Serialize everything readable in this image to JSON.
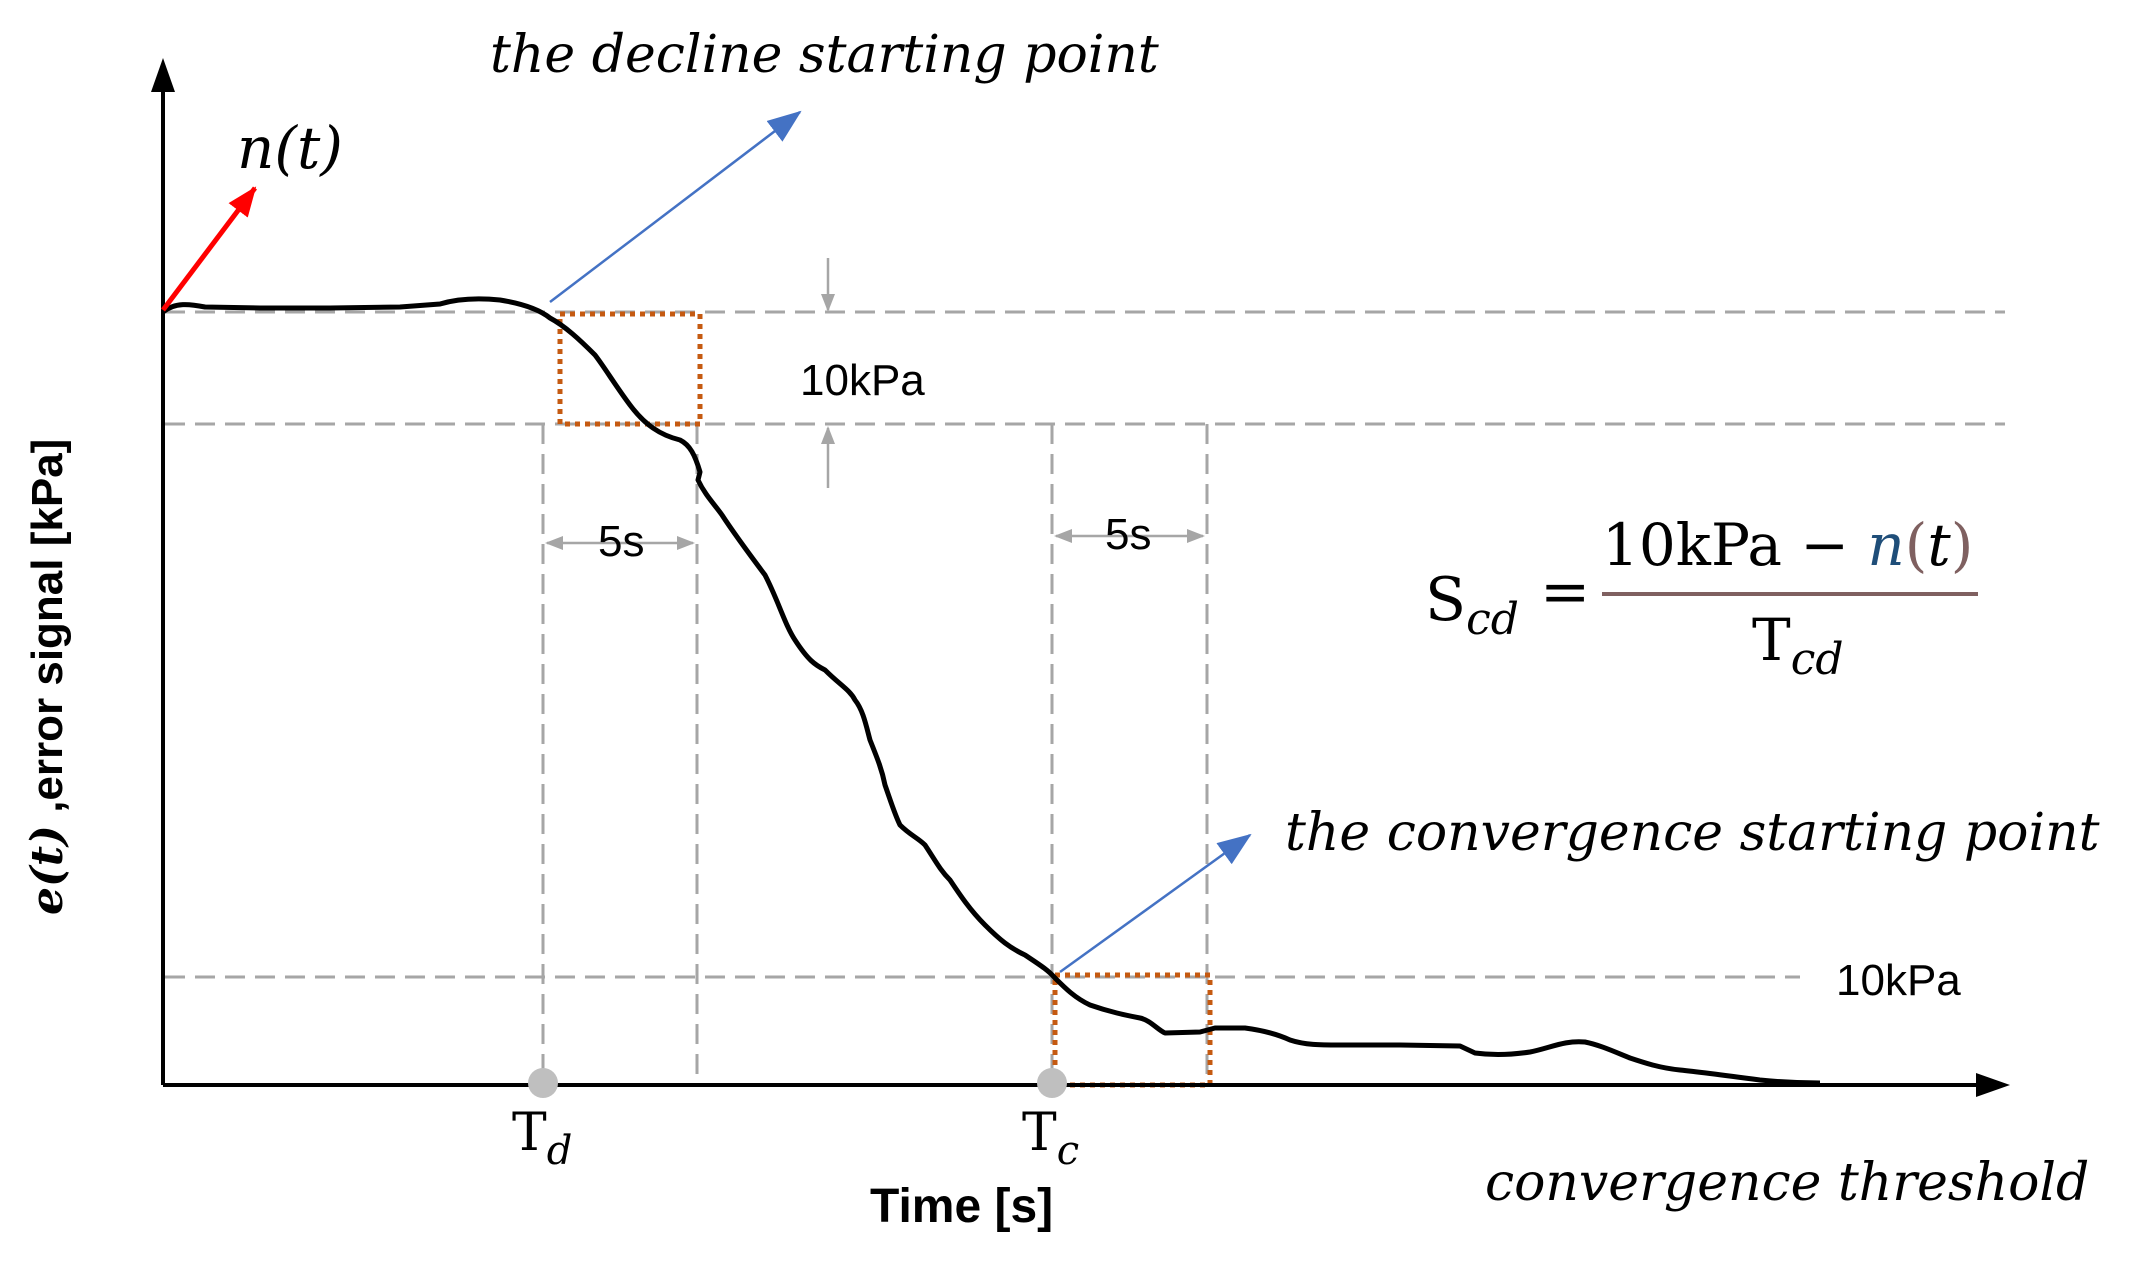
{
  "labels": {
    "n_t": "n(t)",
    "decline_point": "the decline starting point",
    "convergence_point": "the convergence starting point",
    "convergence_threshold": "convergence threshold",
    "band_top": "10kPa",
    "band_bottom": "10kPa",
    "window_left": "5s",
    "window_right": "5s",
    "tick_td_main": "T",
    "tick_td_sub": "d",
    "tick_tc_main": "T",
    "tick_tc_sub": "c",
    "x_axis": "Time [s]",
    "y_axis_e": "e(t)",
    "y_axis_rest": " ,error signal [kPa]"
  },
  "formula": {
    "lhs_main": "S",
    "lhs_sub": "cd",
    "equals": "=",
    "numerator_value": "10kPa − ",
    "numerator_func": "n",
    "numerator_open": "(",
    "numerator_var": "t",
    "numerator_close": ")",
    "denominator_main": "T",
    "denominator_sub": "cd"
  },
  "colors": {
    "curve": "#000000",
    "guide": "#a6a6a6",
    "window_box": "#c55a11",
    "pointer_arrow": "#4472c4",
    "noise_arrow": "#ff0000",
    "formula_bar": "#7f6060",
    "tick_dot": "#bfbfbf"
  }
}
